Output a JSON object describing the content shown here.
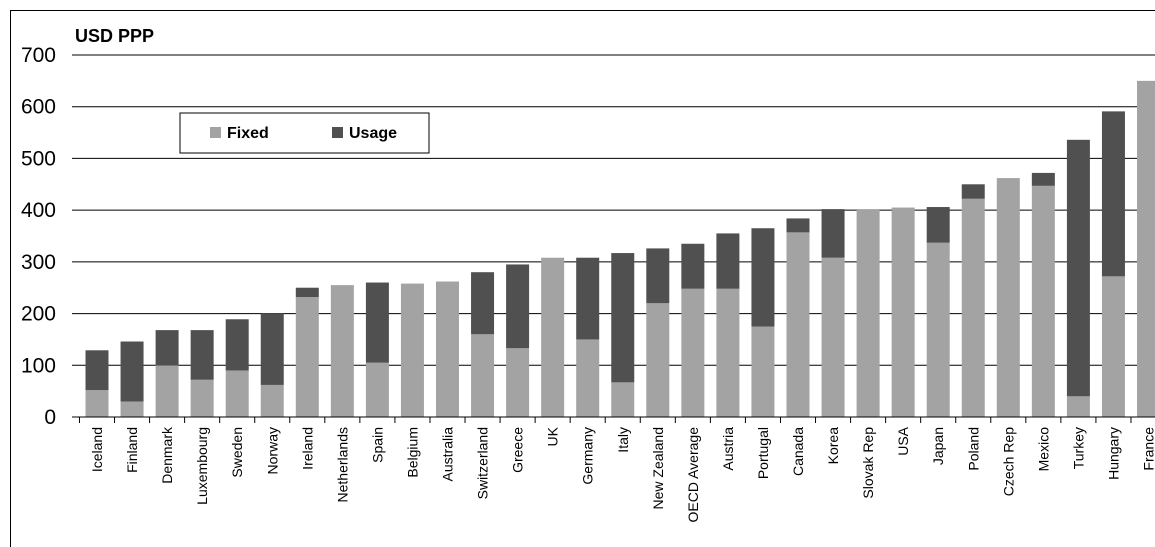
{
  "chart_data": {
    "type": "bar",
    "stacked": true,
    "title": "",
    "ylabel": "USD PPP",
    "xlabel": "",
    "ylim": [
      0,
      700
    ],
    "yticks": [
      0,
      100,
      200,
      300,
      400,
      500,
      600,
      700
    ],
    "grid": true,
    "legend_position": "top-left",
    "colors": {
      "Fixed": "#a3a3a3",
      "Usage": "#505050"
    },
    "categories": [
      "Iceland",
      "Finland",
      "Denmark",
      "Luxembourg",
      "Sweden",
      "Norway",
      "Ireland",
      "Netherlands",
      "Spain",
      "Belgium",
      "Australia",
      "Switzerland",
      "Greece",
      "UK",
      "Germany",
      "Italy",
      "New Zealand",
      "OECD Average",
      "Austria",
      "Portugal",
      "Canada",
      "Korea",
      "Slovak Rep",
      "USA",
      "Japan",
      "Poland",
      "Czech Rep",
      "Mexico",
      "Turkey",
      "Hungary",
      "France"
    ],
    "series": [
      {
        "name": "Fixed",
        "values": [
          52,
          30,
          100,
          72,
          90,
          62,
          232,
          255,
          105,
          258,
          262,
          160,
          133,
          308,
          150,
          67,
          220,
          248,
          248,
          175,
          357,
          308,
          402,
          405,
          337,
          422,
          462,
          447,
          40,
          272,
          650
        ]
      },
      {
        "name": "Usage",
        "values": [
          77,
          116,
          68,
          96,
          99,
          138,
          18,
          0,
          155,
          0,
          0,
          120,
          162,
          0,
          158,
          250,
          106,
          87,
          107,
          190,
          27,
          94,
          0,
          0,
          69,
          28,
          0,
          25,
          496,
          319,
          0
        ]
      }
    ]
  }
}
